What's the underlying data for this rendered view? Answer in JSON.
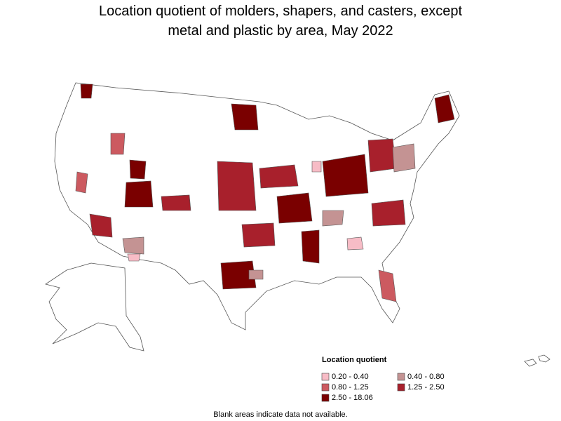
{
  "title": [
    "Location quotient of molders, shapers, and casters, except",
    "metal and plastic by area, May 2022"
  ],
  "legend": {
    "title": "Location quotient",
    "items": [
      {
        "label": "0.20 - 0.40",
        "color": "#f7bcc6"
      },
      {
        "label": "0.40 - 0.80",
        "color": "#c49393"
      },
      {
        "label": "0.80 - 1.25",
        "color": "#cc5a60"
      },
      {
        "label": "1.25 - 2.50",
        "color": "#a8202c"
      },
      {
        "label": "2.50 - 18.06",
        "color": "#7a0000"
      }
    ]
  },
  "footnote": "Blank areas indicate data not available."
}
